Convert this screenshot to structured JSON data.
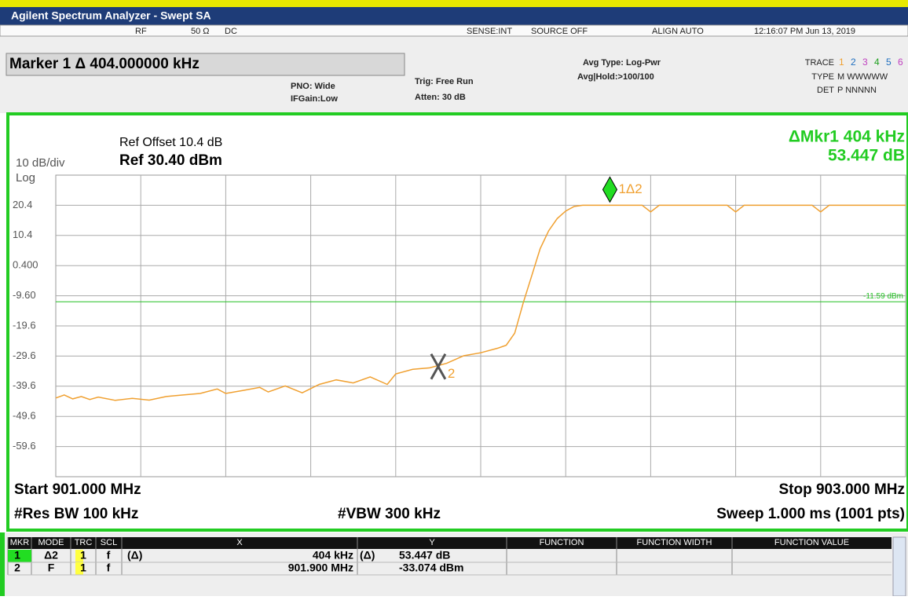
{
  "title_bar": "Agilent Spectrum Analyzer - Swept SA",
  "status": {
    "rf": "RF",
    "impedance": "50 Ω",
    "coupling": "DC",
    "sense": "SENSE:INT",
    "source": "SOURCE OFF",
    "align": "ALIGN AUTO",
    "datetime": "12:16:07 PM Jun 13, 2019"
  },
  "settings": {
    "marker_readout": "Marker 1 Δ 404.000000 kHz",
    "pno": "PNO: Wide",
    "ifgain": "IFGain:Low",
    "trig": "Trig: Free Run",
    "atten": "Atten: 30 dB",
    "avg_type": "Avg Type: Log-Pwr",
    "avg_hold": "Avg|Hold:>100/100",
    "trace_label": "TRACE",
    "traces": [
      "1",
      "2",
      "3",
      "4",
      "5",
      "6"
    ],
    "type_label": "TYPE",
    "type_value": "M WWWWW",
    "det_label": "DET",
    "det_value": "P NNNNN"
  },
  "display": {
    "ref_offset": "Ref Offset 10.4 dB",
    "scale": "10 dB/div",
    "ref_level": "Ref 30.40 dBm",
    "log": "Log",
    "delta_marker": "ΔMkr1 404 kHz",
    "delta_value": "53.447 dB",
    "start": "Start 901.000 MHz",
    "stop": "Stop 903.000 MHz",
    "rbw": "#Res BW 100 kHz",
    "vbw": "#VBW 300 kHz",
    "sweep": "Sweep  1.000 ms (1001 pts)"
  },
  "chart_data": {
    "type": "line",
    "xlim": [
      901,
      903
    ],
    "ylim": [
      -69.6,
      30.4
    ],
    "yticks": [
      20.4,
      10.4,
      {
        "value": 0.4,
        "label": "0.400"
      },
      {
        "value": -9.6,
        "label": "-9.60"
      },
      -19.6,
      -29.6,
      -39.6,
      -49.6,
      -59.6
    ],
    "grid": true,
    "x": [
      901.0,
      901.02,
      901.04,
      901.06,
      901.08,
      901.1,
      901.14,
      901.18,
      901.22,
      901.26,
      901.3,
      901.34,
      901.38,
      901.4,
      901.44,
      901.48,
      901.5,
      901.54,
      901.58,
      901.62,
      901.66,
      901.7,
      901.74,
      901.78,
      901.8,
      901.84,
      901.88,
      901.92,
      901.96,
      902.0,
      902.04,
      902.06,
      902.08,
      902.1,
      902.12,
      902.14,
      902.16,
      902.18,
      902.2,
      902.22,
      902.24,
      902.38,
      902.4,
      902.42,
      902.58,
      902.6,
      902.62,
      902.78,
      902.8,
      902.82,
      903.0
    ],
    "series": [
      {
        "color": "#f0a030",
        "values": [
          -43.5,
          -42.5,
          -43.8,
          -43.0,
          -44.0,
          -43.2,
          -44.3,
          -43.6,
          -44.2,
          -43.0,
          -42.5,
          -42.0,
          -40.5,
          -42.0,
          -41.0,
          -40.0,
          -41.5,
          -39.5,
          -41.8,
          -39.0,
          -37.5,
          -38.5,
          -36.5,
          -39.0,
          -35.5,
          -34.0,
          -33.5,
          -32.0,
          -29.5,
          -28.5,
          -27.0,
          -26.0,
          -22.0,
          -12.0,
          -3.0,
          6.0,
          12.0,
          16.0,
          18.5,
          20.0,
          20.4,
          20.4,
          18.2,
          20.4,
          20.4,
          18.2,
          20.4,
          20.4,
          18.2,
          20.4,
          20.4
        ]
      }
    ],
    "display_line": {
      "value": -11.59,
      "label": "-11.59 dBm",
      "color": "#22c022"
    },
    "markers": [
      {
        "label": "1Δ2",
        "x": 902.304,
        "y": 20.4
      },
      {
        "label": "2",
        "x": 901.9,
        "y": -33.074
      }
    ]
  },
  "marker_table": {
    "headers": [
      "MKR",
      "MODE",
      "TRC",
      "SCL",
      "X",
      "Y",
      "FUNCTION",
      "FUNCTION WIDTH",
      "FUNCTION VALUE"
    ],
    "rows": [
      {
        "mkr": "1",
        "mode": "Δ2",
        "trc": "1",
        "scl": "f",
        "x_ref": "(Δ)",
        "x": "404 kHz",
        "y_ref": "(Δ)",
        "y": "53.447 dB"
      },
      {
        "mkr": "2",
        "mode": "F",
        "trc": "1",
        "scl": "f",
        "x": "901.900 MHz",
        "y": "-33.074 dBm"
      }
    ]
  }
}
